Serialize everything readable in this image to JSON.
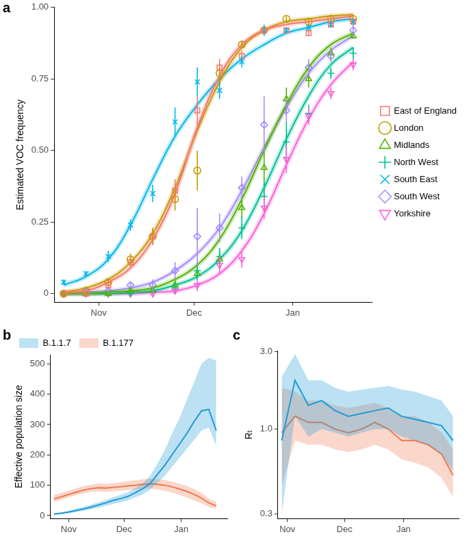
{
  "chart_data": [
    {
      "type": "line",
      "title": "a",
      "y_label": "Estimated VOC frequency",
      "x": [
        -11,
        -4,
        3,
        10,
        17,
        24,
        31,
        38,
        45,
        52,
        59,
        66,
        73,
        80
      ],
      "xlim": [
        -14,
        86
      ],
      "xticks": [
        {
          "value": 0,
          "label": "Nov"
        },
        {
          "value": 30,
          "label": "Dec"
        },
        {
          "value": 61,
          "label": "Jan"
        }
      ],
      "ylim": [
        -0.03,
        1.0
      ],
      "yticks": [
        0,
        0.25,
        {
          "value": 0.5,
          "label": "0.50"
        },
        0.75,
        {
          "value": 1,
          "label": "1.00"
        }
      ],
      "grid": false,
      "legend": "right",
      "series": [
        {
          "name": "East of England",
          "color": "#F8766D",
          "marker": "square",
          "values": [
            0,
            0,
            0.03,
            0.11,
            0.2,
            0.36,
            0.64,
            0.79,
            0.83,
            0.92,
            0.92,
            0.91,
            0.94,
            0.95
          ],
          "error": [
            0.01,
            0.01,
            0.01,
            0.02,
            0.03,
            0.04,
            0.05,
            0.03,
            0.02,
            0.01,
            0.01,
            0.01,
            0.01,
            0.01
          ],
          "fit": [
            0.005,
            0.01,
            0.04,
            0.09,
            0.19,
            0.35,
            0.58,
            0.76,
            0.87,
            0.92,
            0.94,
            0.95,
            0.96,
            0.97
          ]
        },
        {
          "name": "London",
          "color": "#C49A00",
          "marker": "circle",
          "values": [
            0,
            0.01,
            0.04,
            0.12,
            0.2,
            0.33,
            0.43,
            0.77,
            0.87,
            0.92,
            0.96,
            0.95,
            0.96,
            0.96
          ],
          "error": [
            0.01,
            0.01,
            0.01,
            0.02,
            0.03,
            0.04,
            0.07,
            0.02,
            0.01,
            0.01,
            0.01,
            0.01,
            0.01,
            0.01
          ],
          "fit": [
            0.005,
            0.02,
            0.05,
            0.11,
            0.21,
            0.37,
            0.57,
            0.74,
            0.86,
            0.92,
            0.95,
            0.96,
            0.97,
            0.975
          ]
        },
        {
          "name": "Midlands",
          "color": "#53B400",
          "marker": "triangle",
          "values": [
            0,
            0,
            0,
            0.01,
            0.01,
            0.03,
            0.07,
            0.12,
            0.3,
            0.44,
            0.68,
            0.75,
            0.84,
            0.9
          ],
          "error": [
            0,
            0,
            0.01,
            0.01,
            0.01,
            0.02,
            0.02,
            0.03,
            0.04,
            0.08,
            0.04,
            0.03,
            0.02,
            0.01
          ],
          "fit": [
            0,
            0,
            0.005,
            0.01,
            0.02,
            0.05,
            0.1,
            0.19,
            0.33,
            0.5,
            0.66,
            0.79,
            0.87,
            0.91
          ]
        },
        {
          "name": "North West",
          "color": "#00C094",
          "marker": "plus",
          "values": [
            0,
            0,
            0,
            0,
            0.01,
            0.02,
            0.08,
            0.13,
            0.23,
            0.34,
            0.53,
            0.63,
            0.77,
            0.84
          ],
          "error": [
            0,
            0,
            0,
            0.01,
            0.01,
            0.02,
            0.03,
            0.03,
            0.04,
            0.05,
            0.07,
            0.03,
            0.02,
            0.02
          ],
          "fit": [
            0,
            0,
            0,
            0.005,
            0.01,
            0.03,
            0.06,
            0.12,
            0.22,
            0.37,
            0.54,
            0.69,
            0.8,
            0.86
          ]
        },
        {
          "name": "South East",
          "color": "#00B6EB",
          "marker": "x",
          "values": [
            0.04,
            0.07,
            0.13,
            0.24,
            0.35,
            0.6,
            0.74,
            0.71,
            0.81,
            0.92,
            0.92,
            0.93,
            0.94,
            0.95
          ],
          "error": [
            0.01,
            0.01,
            0.02,
            0.02,
            0.03,
            0.05,
            0.05,
            0.03,
            0.02,
            0.02,
            0.01,
            0.01,
            0.01,
            0.01
          ],
          "fit": [
            0.03,
            0.06,
            0.12,
            0.24,
            0.4,
            0.55,
            0.66,
            0.75,
            0.82,
            0.87,
            0.91,
            0.93,
            0.95,
            0.96
          ]
        },
        {
          "name": "South West",
          "color": "#A58AFF",
          "marker": "diamond",
          "values": [
            0,
            0.01,
            0.01,
            0.03,
            0.03,
            0.08,
            0.2,
            0.23,
            0.37,
            0.59,
            0.64,
            0.79,
            0.83,
            0.92
          ],
          "error": [
            0,
            0.01,
            0.01,
            0.01,
            0.02,
            0.03,
            0.1,
            0.05,
            0.04,
            0.1,
            0.04,
            0.03,
            0.02,
            0.02
          ],
          "fit": [
            0,
            0.005,
            0.01,
            0.02,
            0.04,
            0.08,
            0.14,
            0.23,
            0.36,
            0.51,
            0.65,
            0.77,
            0.85,
            0.9
          ]
        },
        {
          "name": "Yorkshire",
          "color": "#FB61D7",
          "marker": "triangle-down",
          "values": [
            0,
            0,
            0,
            0,
            0,
            0.01,
            0.03,
            0.1,
            0.12,
            0.3,
            0.47,
            0.62,
            0.7,
            0.8
          ],
          "error": [
            0,
            0,
            0,
            0,
            0.01,
            0.01,
            0.02,
            0.03,
            0.03,
            0.04,
            0.05,
            0.03,
            0.02,
            0.02
          ],
          "fit": [
            0,
            0,
            0,
            0,
            0.005,
            0.01,
            0.03,
            0.07,
            0.15,
            0.28,
            0.45,
            0.61,
            0.73,
            0.81
          ]
        }
      ]
    },
    {
      "type": "line",
      "title": "b",
      "y_label": "Effective population size",
      "x": [
        -8,
        -4,
        0,
        4,
        8,
        12,
        16,
        20,
        24,
        28,
        32,
        36,
        40,
        44,
        48,
        52,
        56,
        60,
        64,
        68,
        72,
        76,
        80
      ],
      "xlim": [
        -10,
        86
      ],
      "xticks": [
        {
          "value": 0,
          "label": "Nov"
        },
        {
          "value": 30,
          "label": "Dec"
        },
        {
          "value": 61,
          "label": "Jan"
        }
      ],
      "ylim": [
        -10,
        530
      ],
      "yticks": [
        0,
        100,
        200,
        300,
        400,
        500
      ],
      "grid": false,
      "legend": "top",
      "series": [
        {
          "name": "B.1.1.7",
          "color": "#1F9BD6",
          "values": [
            5,
            8,
            12,
            17,
            22,
            28,
            35,
            42,
            50,
            56,
            63,
            75,
            88,
            105,
            135,
            165,
            200,
            235,
            270,
            310,
            345,
            350,
            280
          ],
          "lower": [
            3,
            5,
            8,
            12,
            16,
            20,
            26,
            32,
            38,
            44,
            50,
            60,
            70,
            85,
            108,
            130,
            160,
            190,
            220,
            250,
            280,
            290,
            230
          ],
          "upper": [
            8,
            12,
            17,
            23,
            29,
            36,
            44,
            52,
            60,
            68,
            77,
            90,
            105,
            130,
            170,
            215,
            270,
            320,
            380,
            440,
            500,
            520,
            510
          ]
        },
        {
          "name": "B.1.177",
          "color": "#EF7A4F",
          "values": [
            55,
            62,
            70,
            77,
            84,
            89,
            92,
            91,
            93,
            95,
            98,
            100,
            103,
            105,
            103,
            100,
            95,
            88,
            80,
            70,
            58,
            42,
            32
          ],
          "lower": [
            45,
            52,
            60,
            67,
            73,
            78,
            80,
            78,
            80,
            82,
            84,
            86,
            88,
            89,
            86,
            82,
            76,
            68,
            60,
            50,
            40,
            28,
            22
          ],
          "upper": [
            68,
            75,
            83,
            90,
            97,
            102,
            106,
            105,
            107,
            110,
            113,
            116,
            120,
            122,
            120,
            118,
            112,
            105,
            98,
            88,
            75,
            56,
            45
          ]
        }
      ]
    },
    {
      "type": "line",
      "title": "c",
      "y_label": "Rₜ",
      "x": [
        -3,
        4,
        11,
        18,
        25,
        32,
        39,
        46,
        53,
        60,
        67,
        74,
        81,
        87
      ],
      "xlim": [
        -5,
        90
      ],
      "xticks": [
        {
          "value": 0,
          "label": "Nov"
        },
        {
          "value": 30,
          "label": "Dec"
        },
        {
          "value": 61,
          "label": "Jan"
        }
      ],
      "ylim": [
        0.28,
        3.05
      ],
      "yticks": [
        0.3,
        {
          "value": 1,
          "label": "1.0"
        },
        {
          "value": 3,
          "label": "3.0"
        }
      ],
      "log": "y",
      "grid": false,
      "series": [
        {
          "name": "B.1.1.7",
          "color": "#1F9BD6",
          "values": [
            0.85,
            2.0,
            1.4,
            1.5,
            1.3,
            1.2,
            1.25,
            1.3,
            1.35,
            1.2,
            1.15,
            1.1,
            1.05,
            0.85
          ],
          "lower": [
            0.3,
            1.2,
            0.9,
            1.0,
            0.95,
            0.9,
            0.95,
            1.0,
            1.0,
            0.9,
            0.85,
            0.8,
            0.7,
            0.55
          ],
          "upper": [
            2.1,
            2.9,
            2.0,
            2.0,
            1.8,
            1.7,
            1.75,
            1.8,
            1.85,
            1.75,
            1.7,
            1.6,
            1.5,
            1.2
          ]
        },
        {
          "name": "B.1.177",
          "color": "#EF7A4F",
          "values": [
            0.95,
            1.2,
            1.1,
            1.1,
            1.0,
            0.95,
            1.0,
            1.1,
            1.0,
            0.85,
            0.85,
            0.8,
            0.7,
            0.52
          ],
          "lower": [
            0.45,
            0.85,
            0.8,
            0.8,
            0.75,
            0.72,
            0.75,
            0.8,
            0.75,
            0.65,
            0.62,
            0.58,
            0.5,
            0.38
          ],
          "upper": [
            1.8,
            1.7,
            1.5,
            1.5,
            1.4,
            1.35,
            1.4,
            1.45,
            1.35,
            1.2,
            1.2,
            1.1,
            0.95,
            0.75
          ]
        }
      ]
    }
  ]
}
